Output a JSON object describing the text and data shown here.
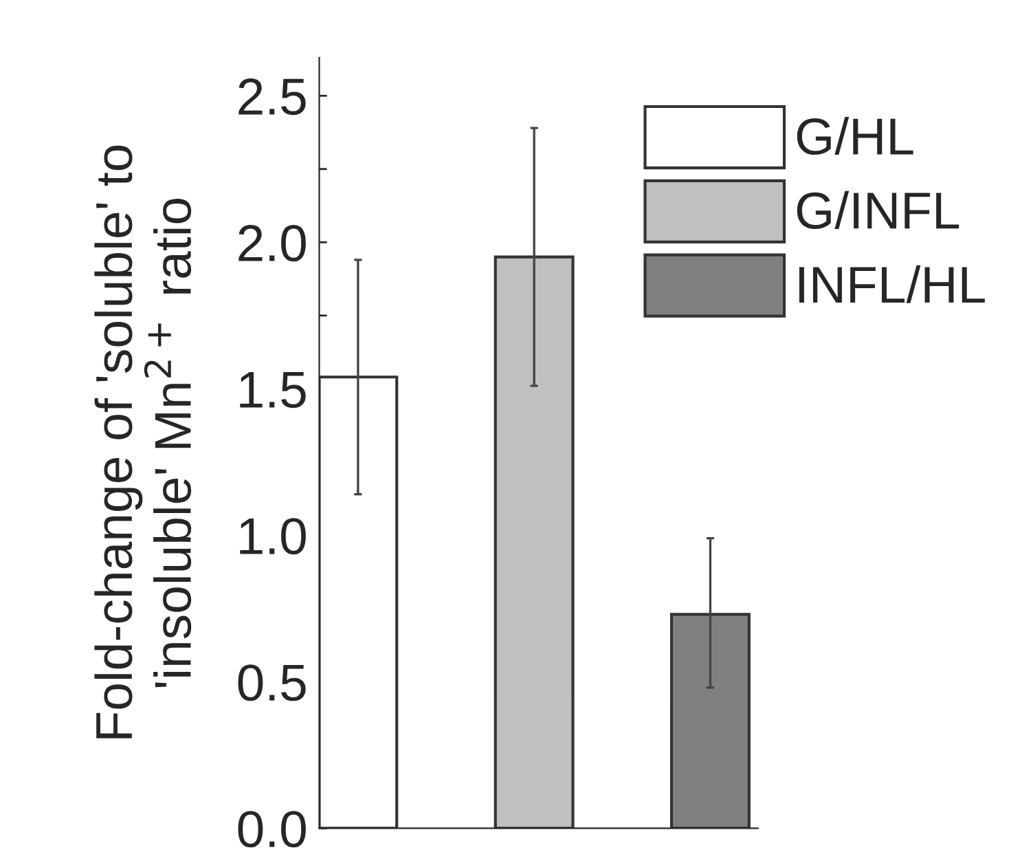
{
  "chart_data": {
    "type": "bar",
    "ylabel": "Fold-change of 'soluble' to\n'insoluble' Mn$^{2+}$ ratio",
    "categories": [
      null,
      null,
      null
    ],
    "series": [
      {
        "name": "G/HL",
        "color": "#ffffff",
        "values": [
          1.54,
          null,
          null
        ],
        "errors": [
          [
            1.14,
            1.94
          ],
          null,
          null
        ]
      },
      {
        "name": "G/INFL",
        "color": "#c0c0c0",
        "values": [
          null,
          1.95,
          null
        ],
        "errors": [
          null,
          [
            1.51,
            2.39
          ],
          null
        ]
      },
      {
        "name": "INFL/HL",
        "color": "#808080",
        "values": [
          null,
          null,
          0.73
        ],
        "errors": [
          null,
          null,
          [
            0.48,
            0.99
          ]
        ]
      }
    ],
    "ylim": [
      0,
      2.63
    ],
    "yticks": [
      {
        "value": 0,
        "label": "0.0"
      },
      {
        "value": 0.25,
        "label": null
      },
      {
        "value": 0.5,
        "label": "0.5"
      },
      {
        "value": 0.75,
        "label": null
      },
      {
        "value": 1,
        "label": "1.0"
      },
      {
        "value": 1.25,
        "label": null
      },
      {
        "value": 1.5,
        "label": "1.5"
      },
      {
        "value": 1.75,
        "label": null
      },
      {
        "value": 2,
        "label": "2.0"
      },
      {
        "value": 2.25,
        "label": null
      },
      {
        "value": 2.5,
        "label": "2.5"
      }
    ],
    "grid": false,
    "legend": "top right"
  }
}
